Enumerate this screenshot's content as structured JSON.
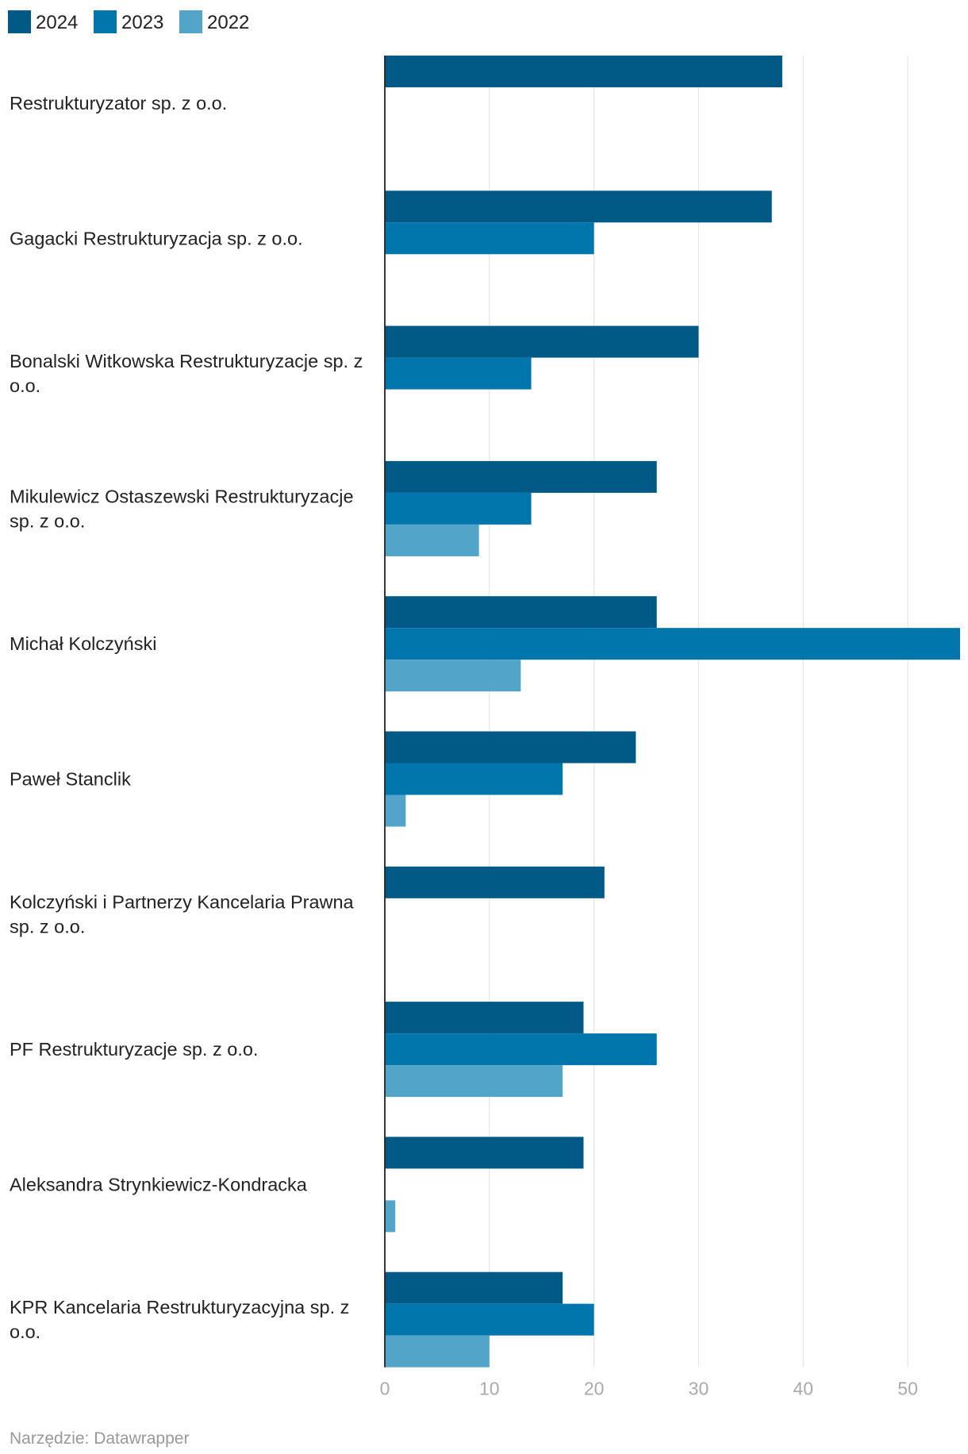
{
  "chart_data": {
    "type": "bar",
    "orientation": "horizontal",
    "categories": [
      "Restrukturyzator sp. z o.o.",
      "Gagacki Restrukturyzacja sp. z o.o.",
      "Bonalski Witkowska Restrukturyzacje sp. z o.o.",
      "Mikulewicz Ostaszewski Restrukturyzacje sp. z o.o.",
      "Michał Kolczyński",
      "Paweł Stanclik",
      "Kolczyński i Partnerzy Kancelaria Prawna sp. z o.o.",
      "PF Restrukturyzacje sp. z o.o.",
      "Aleksandra Strynkiewicz-Kondracka",
      "KPR Kancelaria Restrukturyzacyjna sp. z o.o."
    ],
    "series": [
      {
        "name": "2024",
        "color": "#005a85",
        "values": [
          38,
          37,
          30,
          26,
          26,
          24,
          21,
          19,
          19,
          17
        ]
      },
      {
        "name": "2023",
        "color": "#0076ad",
        "values": [
          null,
          20,
          14,
          14,
          55,
          17,
          null,
          26,
          null,
          20
        ]
      },
      {
        "name": "2022",
        "color": "#52a4c9",
        "values": [
          null,
          null,
          null,
          9,
          13,
          2,
          null,
          17,
          1,
          10
        ]
      }
    ],
    "xlim": [
      0,
      55
    ],
    "xticks": [
      0,
      10,
      20,
      30,
      40,
      50
    ],
    "grid": true,
    "legend_position": "top-left",
    "title": "",
    "xlabel": "",
    "ylabel": ""
  },
  "footer": {
    "source": "Narzędzie: Datawrapper"
  }
}
